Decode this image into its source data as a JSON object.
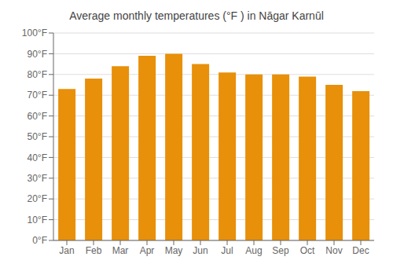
{
  "chart_data": {
    "type": "bar",
    "title": "Average monthly temperatures (°F ) in Nāgar Karnūl",
    "categories": [
      "Jan",
      "Feb",
      "Mar",
      "Apr",
      "May",
      "Jun",
      "Jul",
      "Aug",
      "Sep",
      "Oct",
      "Nov",
      "Dec"
    ],
    "values": [
      73,
      78,
      84,
      89,
      90,
      85,
      81,
      80,
      80,
      79,
      75,
      72
    ],
    "color": "#E8900A",
    "ylim": [
      0,
      100
    ],
    "yticks": [
      {
        "value": 0,
        "label": "0°F"
      },
      {
        "value": 10,
        "label": "10°F"
      },
      {
        "value": 20,
        "label": "20°F"
      },
      {
        "value": 30,
        "label": "30°F"
      },
      {
        "value": 40,
        "label": "40°F"
      },
      {
        "value": 50,
        "label": "50°F"
      },
      {
        "value": 60,
        "label": "60°F"
      },
      {
        "value": 70,
        "label": "70°F"
      },
      {
        "value": 80,
        "label": "80°F"
      },
      {
        "value": 90,
        "label": "90°F"
      },
      {
        "value": 100,
        "label": "100°F"
      }
    ],
    "grid": true
  }
}
